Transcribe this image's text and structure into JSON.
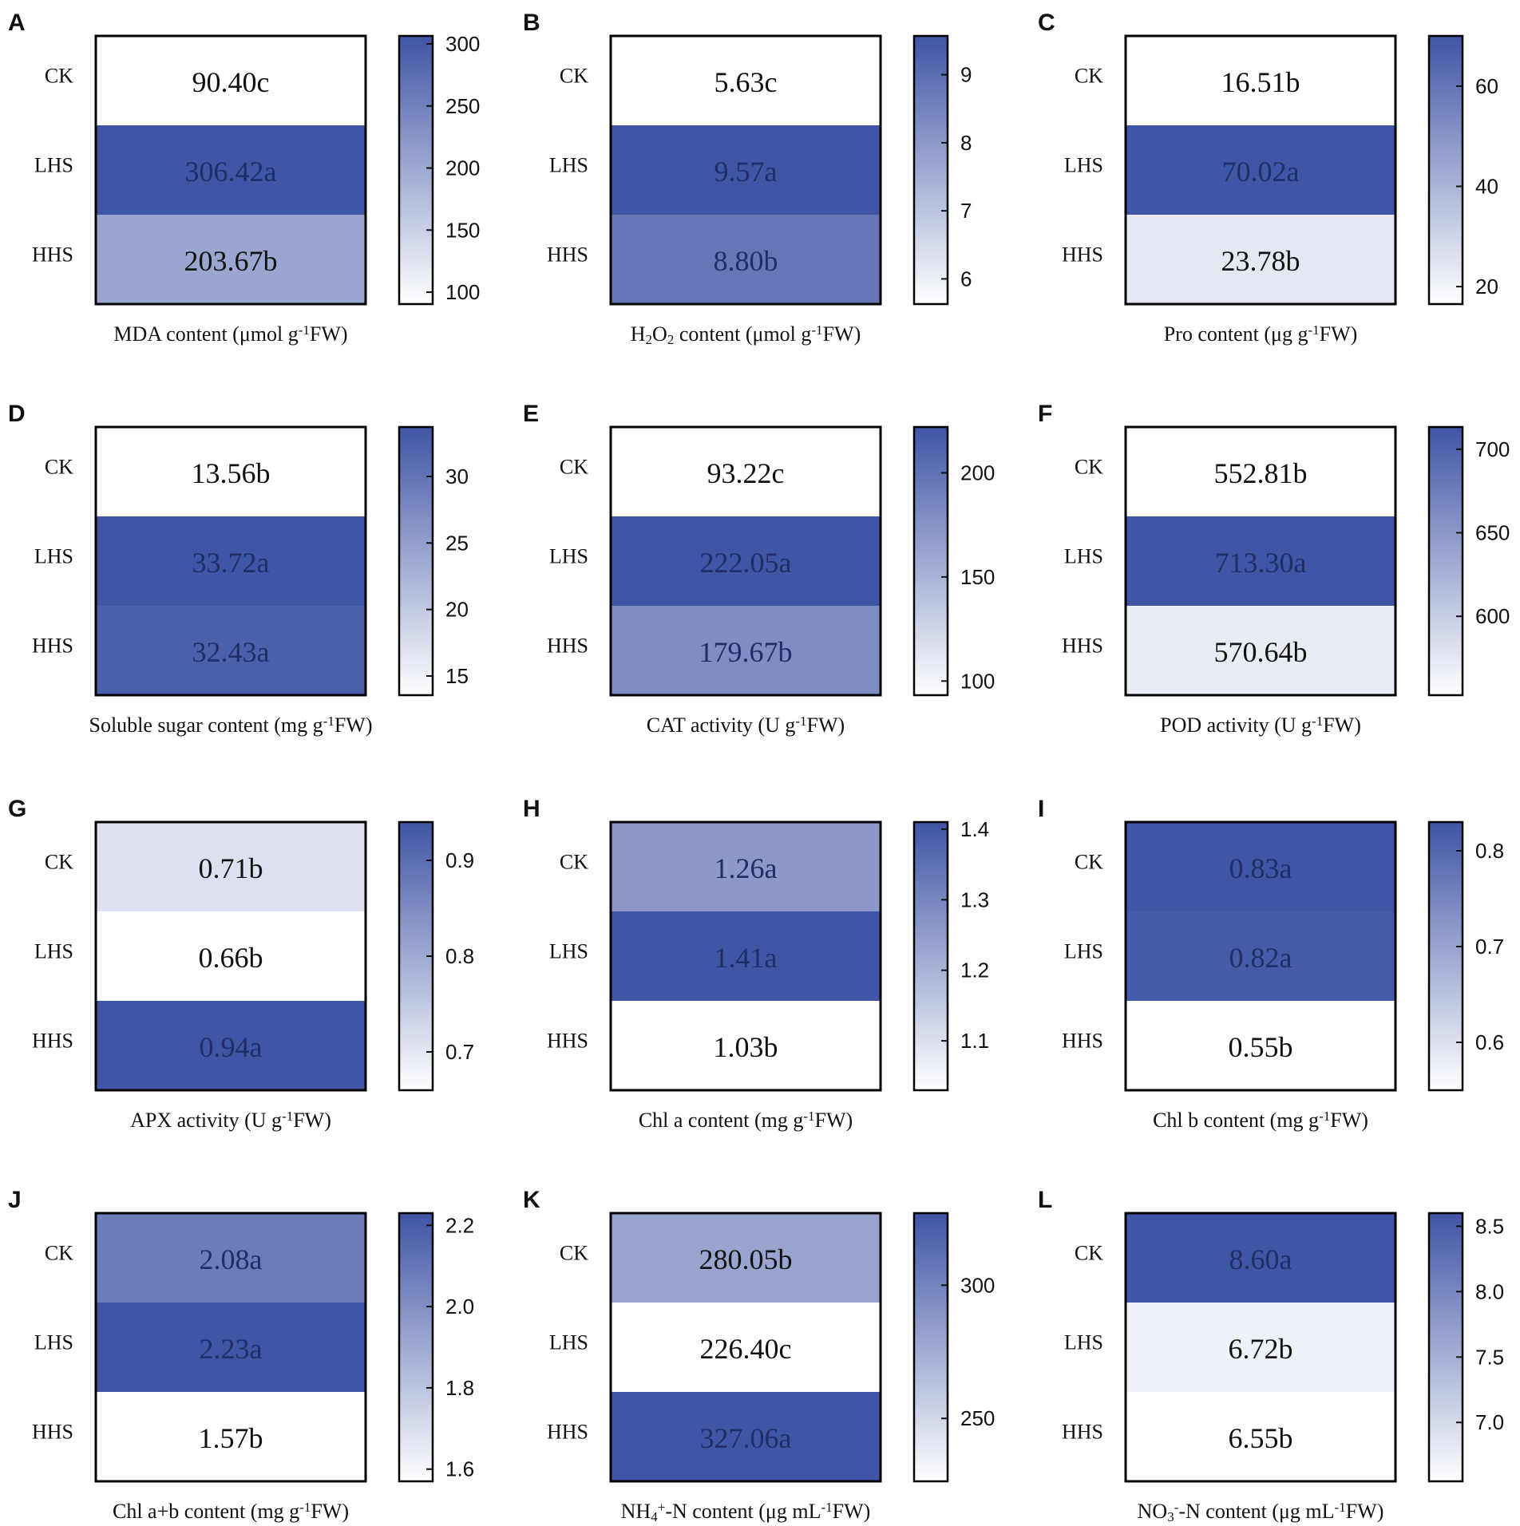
{
  "colors": {
    "low": "#ffffff",
    "high": "#3f55a5",
    "frame": "#000000"
  },
  "chart_data": [
    {
      "panel": "A",
      "type": "heatmap",
      "rows": [
        "CK",
        "LHS",
        "HHS"
      ],
      "values": [
        90.4,
        306.42,
        203.67
      ],
      "labels": [
        "90.40c",
        "306.42a",
        "203.67b"
      ],
      "xlabel_parts": [
        [
          "MDA content (μmol g",
          ""
        ],
        [
          "-1",
          "sup"
        ],
        [
          "FW)",
          ""
        ]
      ],
      "color_range": [
        90.4,
        306.42
      ],
      "ticks": [
        100,
        150,
        200,
        250,
        300
      ]
    },
    {
      "panel": "B",
      "type": "heatmap",
      "rows": [
        "CK",
        "LHS",
        "HHS"
      ],
      "values": [
        5.63,
        9.57,
        8.8
      ],
      "labels": [
        "5.63c",
        "9.57a",
        "8.80b"
      ],
      "xlabel_parts": [
        [
          "H",
          ""
        ],
        [
          "2",
          "sub"
        ],
        [
          "O",
          ""
        ],
        [
          "2",
          "sub"
        ],
        [
          " content (μmol g",
          ""
        ],
        [
          "-1",
          "sup"
        ],
        [
          "FW)",
          ""
        ]
      ],
      "color_range": [
        5.63,
        9.57
      ],
      "ticks": [
        6,
        7,
        8,
        9
      ]
    },
    {
      "panel": "C",
      "type": "heatmap",
      "rows": [
        "CK",
        "LHS",
        "HHS"
      ],
      "values": [
        16.51,
        70.02,
        23.78
      ],
      "labels": [
        "16.51b",
        "70.02a",
        "23.78b"
      ],
      "xlabel_parts": [
        [
          "Pro content (μg g",
          ""
        ],
        [
          "-1",
          "sup"
        ],
        [
          "FW)",
          ""
        ]
      ],
      "color_range": [
        16.51,
        70.02
      ],
      "ticks": [
        20,
        40,
        60
      ]
    },
    {
      "panel": "D",
      "type": "heatmap",
      "rows": [
        "CK",
        "LHS",
        "HHS"
      ],
      "values": [
        13.56,
        33.72,
        32.43
      ],
      "labels": [
        "13.56b",
        "33.72a",
        "32.43a"
      ],
      "xlabel_parts": [
        [
          "Soluble sugar content (mg g",
          ""
        ],
        [
          "-1",
          "sup"
        ],
        [
          "FW)",
          ""
        ]
      ],
      "color_range": [
        13.56,
        33.72
      ],
      "ticks": [
        15,
        20,
        25,
        30
      ]
    },
    {
      "panel": "E",
      "type": "heatmap",
      "rows": [
        "CK",
        "LHS",
        "HHS"
      ],
      "values": [
        93.22,
        222.05,
        179.67
      ],
      "labels": [
        "93.22c",
        "222.05a",
        "179.67b"
      ],
      "xlabel_parts": [
        [
          "CAT activity (U g",
          ""
        ],
        [
          "-1",
          "sup"
        ],
        [
          "FW)",
          ""
        ]
      ],
      "color_range": [
        93.22,
        222.05
      ],
      "ticks": [
        100,
        150,
        200
      ]
    },
    {
      "panel": "F",
      "type": "heatmap",
      "rows": [
        "CK",
        "LHS",
        "HHS"
      ],
      "values": [
        552.81,
        713.3,
        570.64
      ],
      "labels": [
        "552.81b",
        "713.30a",
        "570.64b"
      ],
      "xlabel_parts": [
        [
          "POD activity (U g",
          ""
        ],
        [
          "-1",
          "sup"
        ],
        [
          "FW)",
          ""
        ]
      ],
      "color_range": [
        552.81,
        713.3
      ],
      "ticks": [
        600,
        650,
        700
      ]
    },
    {
      "panel": "G",
      "type": "heatmap",
      "rows": [
        "CK",
        "LHS",
        "HHS"
      ],
      "values": [
        0.71,
        0.66,
        0.94
      ],
      "labels": [
        "0.71b",
        "0.66b",
        "0.94a"
      ],
      "xlabel_parts": [
        [
          "APX activity (U g",
          ""
        ],
        [
          "-1",
          "sup"
        ],
        [
          "FW)",
          ""
        ]
      ],
      "color_range": [
        0.66,
        0.94
      ],
      "ticks": [
        0.7,
        0.8,
        0.9
      ],
      "tick_decimals": 1
    },
    {
      "panel": "H",
      "type": "heatmap",
      "rows": [
        "CK",
        "LHS",
        "HHS"
      ],
      "values": [
        1.26,
        1.41,
        1.03
      ],
      "labels": [
        "1.26a",
        "1.41a",
        "1.03b"
      ],
      "xlabel_parts": [
        [
          "Chl a content (mg g",
          ""
        ],
        [
          "-1",
          "sup"
        ],
        [
          "FW)",
          ""
        ]
      ],
      "color_range": [
        1.03,
        1.41
      ],
      "ticks": [
        1.1,
        1.2,
        1.3,
        1.4
      ],
      "tick_decimals": 1
    },
    {
      "panel": "I",
      "type": "heatmap",
      "rows": [
        "CK",
        "LHS",
        "HHS"
      ],
      "values": [
        0.83,
        0.82,
        0.55
      ],
      "labels": [
        "0.83a",
        "0.82a",
        "0.55b"
      ],
      "xlabel_parts": [
        [
          "Chl b content (mg g",
          ""
        ],
        [
          "-1",
          "sup"
        ],
        [
          "FW)",
          ""
        ]
      ],
      "color_range": [
        0.55,
        0.83
      ],
      "ticks": [
        0.6,
        0.7,
        0.8
      ],
      "tick_decimals": 1
    },
    {
      "panel": "J",
      "type": "heatmap",
      "rows": [
        "CK",
        "LHS",
        "HHS"
      ],
      "values": [
        2.08,
        2.23,
        1.57
      ],
      "labels": [
        "2.08a",
        "2.23a",
        "1.57b"
      ],
      "xlabel_parts": [
        [
          "Chl a+b content (mg g",
          ""
        ],
        [
          "-1",
          "sup"
        ],
        [
          "FW)",
          ""
        ]
      ],
      "color_range": [
        1.57,
        2.23
      ],
      "ticks": [
        1.6,
        1.8,
        2.0,
        2.2
      ],
      "tick_decimals": 1
    },
    {
      "panel": "K",
      "type": "heatmap",
      "rows": [
        "CK",
        "LHS",
        "HHS"
      ],
      "values": [
        280.05,
        226.4,
        327.06
      ],
      "labels": [
        "280.05b",
        "226.40c",
        "327.06a"
      ],
      "xlabel_parts": [
        [
          "NH",
          ""
        ],
        [
          "4",
          "sub"
        ],
        [
          "+",
          "sup"
        ],
        [
          "-N content (μg mL",
          ""
        ],
        [
          "-1",
          "sup"
        ],
        [
          "FW)",
          ""
        ]
      ],
      "color_range": [
        226.4,
        327.06
      ],
      "ticks": [
        250,
        300
      ]
    },
    {
      "panel": "L",
      "type": "heatmap",
      "rows": [
        "CK",
        "LHS",
        "HHS"
      ],
      "values": [
        8.6,
        6.72,
        6.55
      ],
      "labels": [
        "8.60a",
        "6.72b",
        "6.55b"
      ],
      "xlabel_parts": [
        [
          "NO",
          ""
        ],
        [
          "3",
          "sub"
        ],
        [
          "-",
          "sup"
        ],
        [
          "-N content (μg mL",
          ""
        ],
        [
          "-1",
          "sup"
        ],
        [
          "FW)",
          ""
        ]
      ],
      "color_range": [
        6.55,
        8.6
      ],
      "ticks": [
        7.0,
        7.5,
        8.0,
        8.5
      ],
      "tick_decimals": 1
    }
  ]
}
